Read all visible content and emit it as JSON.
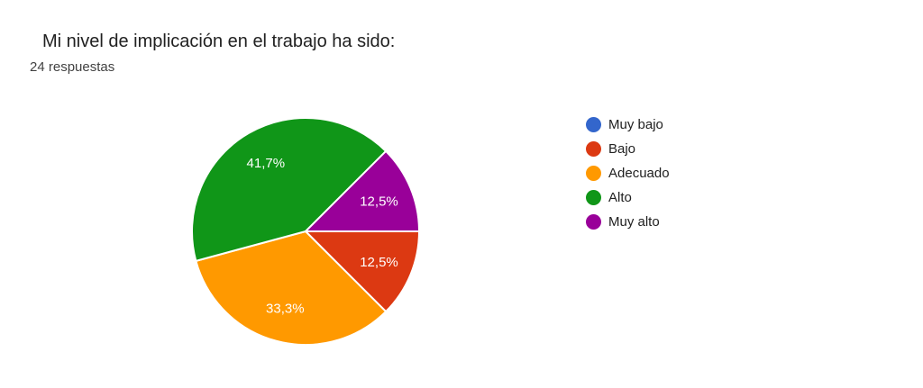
{
  "chart_data": {
    "type": "pie",
    "title": "Mi nivel de implicación en el trabajo ha sido:",
    "responses_label": "24 respuestas",
    "total_responses": 24,
    "categories": [
      "Muy bajo",
      "Bajo",
      "Adecuado",
      "Alto",
      "Muy alto"
    ],
    "values_percent": [
      0,
      12.5,
      33.3,
      41.7,
      12.5
    ],
    "slice_labels": [
      "",
      "12,5%",
      "33,3%",
      "41,7%",
      "12,5%"
    ],
    "colors": [
      "#3366CC",
      "#DC3912",
      "#FF9900",
      "#109618",
      "#990099"
    ],
    "slice_label_color": "#FFFFFF",
    "slice_border_color": "#FFFFFF",
    "background_color": "#FFFFFF",
    "title_color": "#212121",
    "subtitle_color": "#424242",
    "legend_text_color": "#212121",
    "legend_position": "right",
    "start_angle_clockwise_from_top_deg": 90
  }
}
